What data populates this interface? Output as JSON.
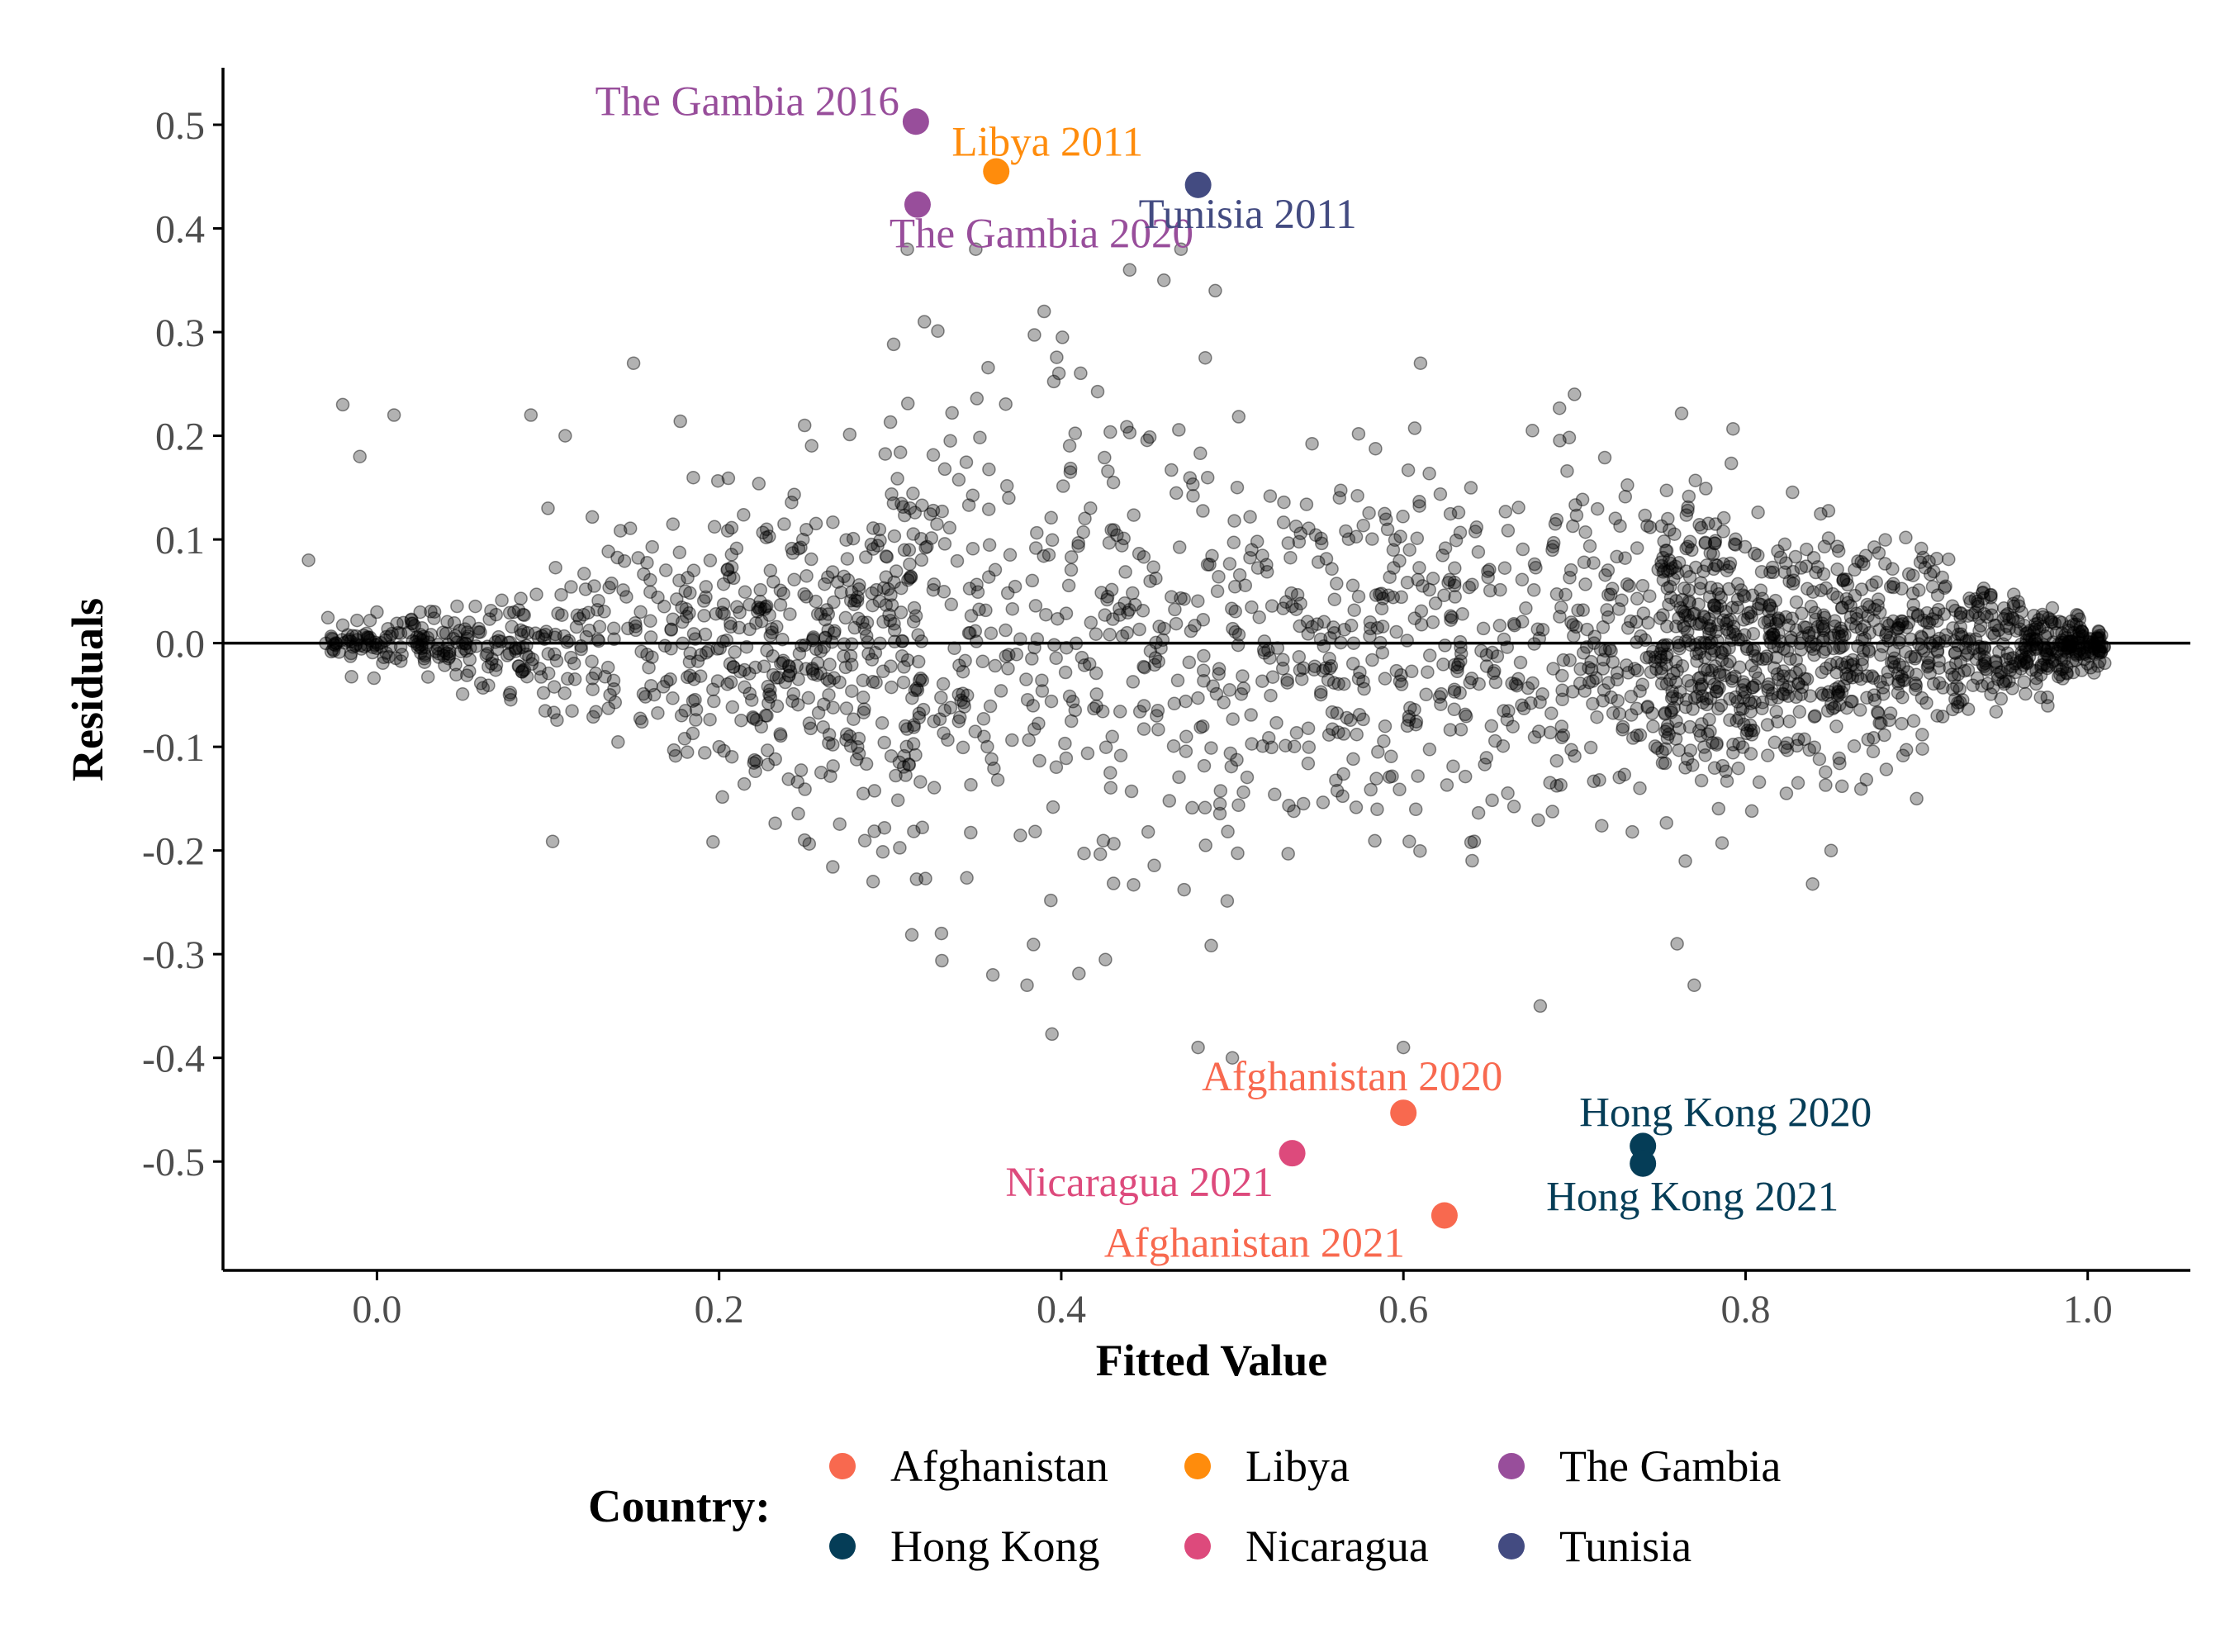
{
  "chart_data": {
    "type": "scatter",
    "title": "",
    "xlabel": "Fitted Value",
    "ylabel": "Residuals",
    "xlim": [
      -0.09,
      1.06
    ],
    "ylim": [
      -0.605,
      0.555
    ],
    "x_ticks": [
      "0.0",
      "0.2",
      "0.4",
      "0.6",
      "0.8",
      "1.0"
    ],
    "y_ticks": [
      "0.5",
      "0.4",
      "0.3",
      "0.2",
      "0.1",
      "0.0",
      "-0.1",
      "-0.2",
      "-0.3",
      "-0.4",
      "-0.5"
    ],
    "reference_line_y": 0,
    "grid": false,
    "background_points": {
      "description_visible": false,
      "color": "#000000",
      "approx_count": 2600,
      "sample_points": [
        [
          -0.04,
          0.08
        ],
        [
          -0.02,
          0.23
        ],
        [
          -0.01,
          0.18
        ],
        [
          0.01,
          0.22
        ],
        [
          0.0,
          0.03
        ],
        [
          0.05,
          0.0
        ],
        [
          0.09,
          0.22
        ],
        [
          0.1,
          0.13
        ],
        [
          0.11,
          0.2
        ],
        [
          0.15,
          0.27
        ],
        [
          0.2,
          -0.1
        ],
        [
          0.23,
          0.07
        ],
        [
          0.25,
          0.21
        ],
        [
          0.25,
          -0.19
        ],
        [
          0.29,
          -0.23
        ],
        [
          0.31,
          0.38
        ],
        [
          0.32,
          0.31
        ],
        [
          0.33,
          -0.28
        ],
        [
          0.35,
          0.38
        ],
        [
          0.36,
          -0.32
        ],
        [
          0.38,
          -0.33
        ],
        [
          0.39,
          0.32
        ],
        [
          0.44,
          0.36
        ],
        [
          0.46,
          0.35
        ],
        [
          0.47,
          0.38
        ],
        [
          0.48,
          -0.39
        ],
        [
          0.49,
          0.34
        ],
        [
          0.5,
          -0.4
        ],
        [
          0.6,
          -0.39
        ],
        [
          0.61,
          0.27
        ],
        [
          0.68,
          -0.35
        ],
        [
          0.7,
          0.24
        ],
        [
          0.76,
          -0.29
        ],
        [
          0.77,
          -0.33
        ],
        [
          0.85,
          -0.2
        ],
        [
          0.9,
          -0.15
        ],
        [
          1.0,
          -0.02
        ]
      ]
    },
    "series": [
      {
        "name": "Afghanistan",
        "color": "#f8694f",
        "points": [
          {
            "label": "Afghanistan 2020",
            "x": 0.6,
            "y": -0.453
          },
          {
            "label": "Afghanistan 2021",
            "x": 0.624,
            "y": -0.552
          }
        ]
      },
      {
        "name": "Hong Kong",
        "color": "#053d57",
        "points": [
          {
            "label": "Hong Kong 2020",
            "x": 0.74,
            "y": -0.485
          },
          {
            "label": "Hong Kong 2021",
            "x": 0.74,
            "y": -0.502
          }
        ]
      },
      {
        "name": "Libya",
        "color": "#ff8c0c",
        "points": [
          {
            "label": "Libya 2011",
            "x": 0.362,
            "y": 0.455
          }
        ]
      },
      {
        "name": "Nicaragua",
        "color": "#dd4a7c",
        "points": [
          {
            "label": "Nicaragua 2021",
            "x": 0.535,
            "y": -0.492
          }
        ]
      },
      {
        "name": "The Gambia",
        "color": "#984e9b",
        "points": [
          {
            "label": "The Gambia 2016",
            "x": 0.315,
            "y": 0.503
          },
          {
            "label": "The Gambia 2020",
            "x": 0.316,
            "y": 0.423
          }
        ]
      },
      {
        "name": "Tunisia",
        "color": "#434b81",
        "points": [
          {
            "label": "Tunisia 2011",
            "x": 0.48,
            "y": 0.442
          }
        ]
      }
    ],
    "legend": {
      "title": "Country:",
      "placement": "bottom",
      "items": [
        "Afghanistan",
        "Libya",
        "The Gambia",
        "Hong Kong",
        "Nicaragua",
        "Tunisia"
      ]
    }
  }
}
